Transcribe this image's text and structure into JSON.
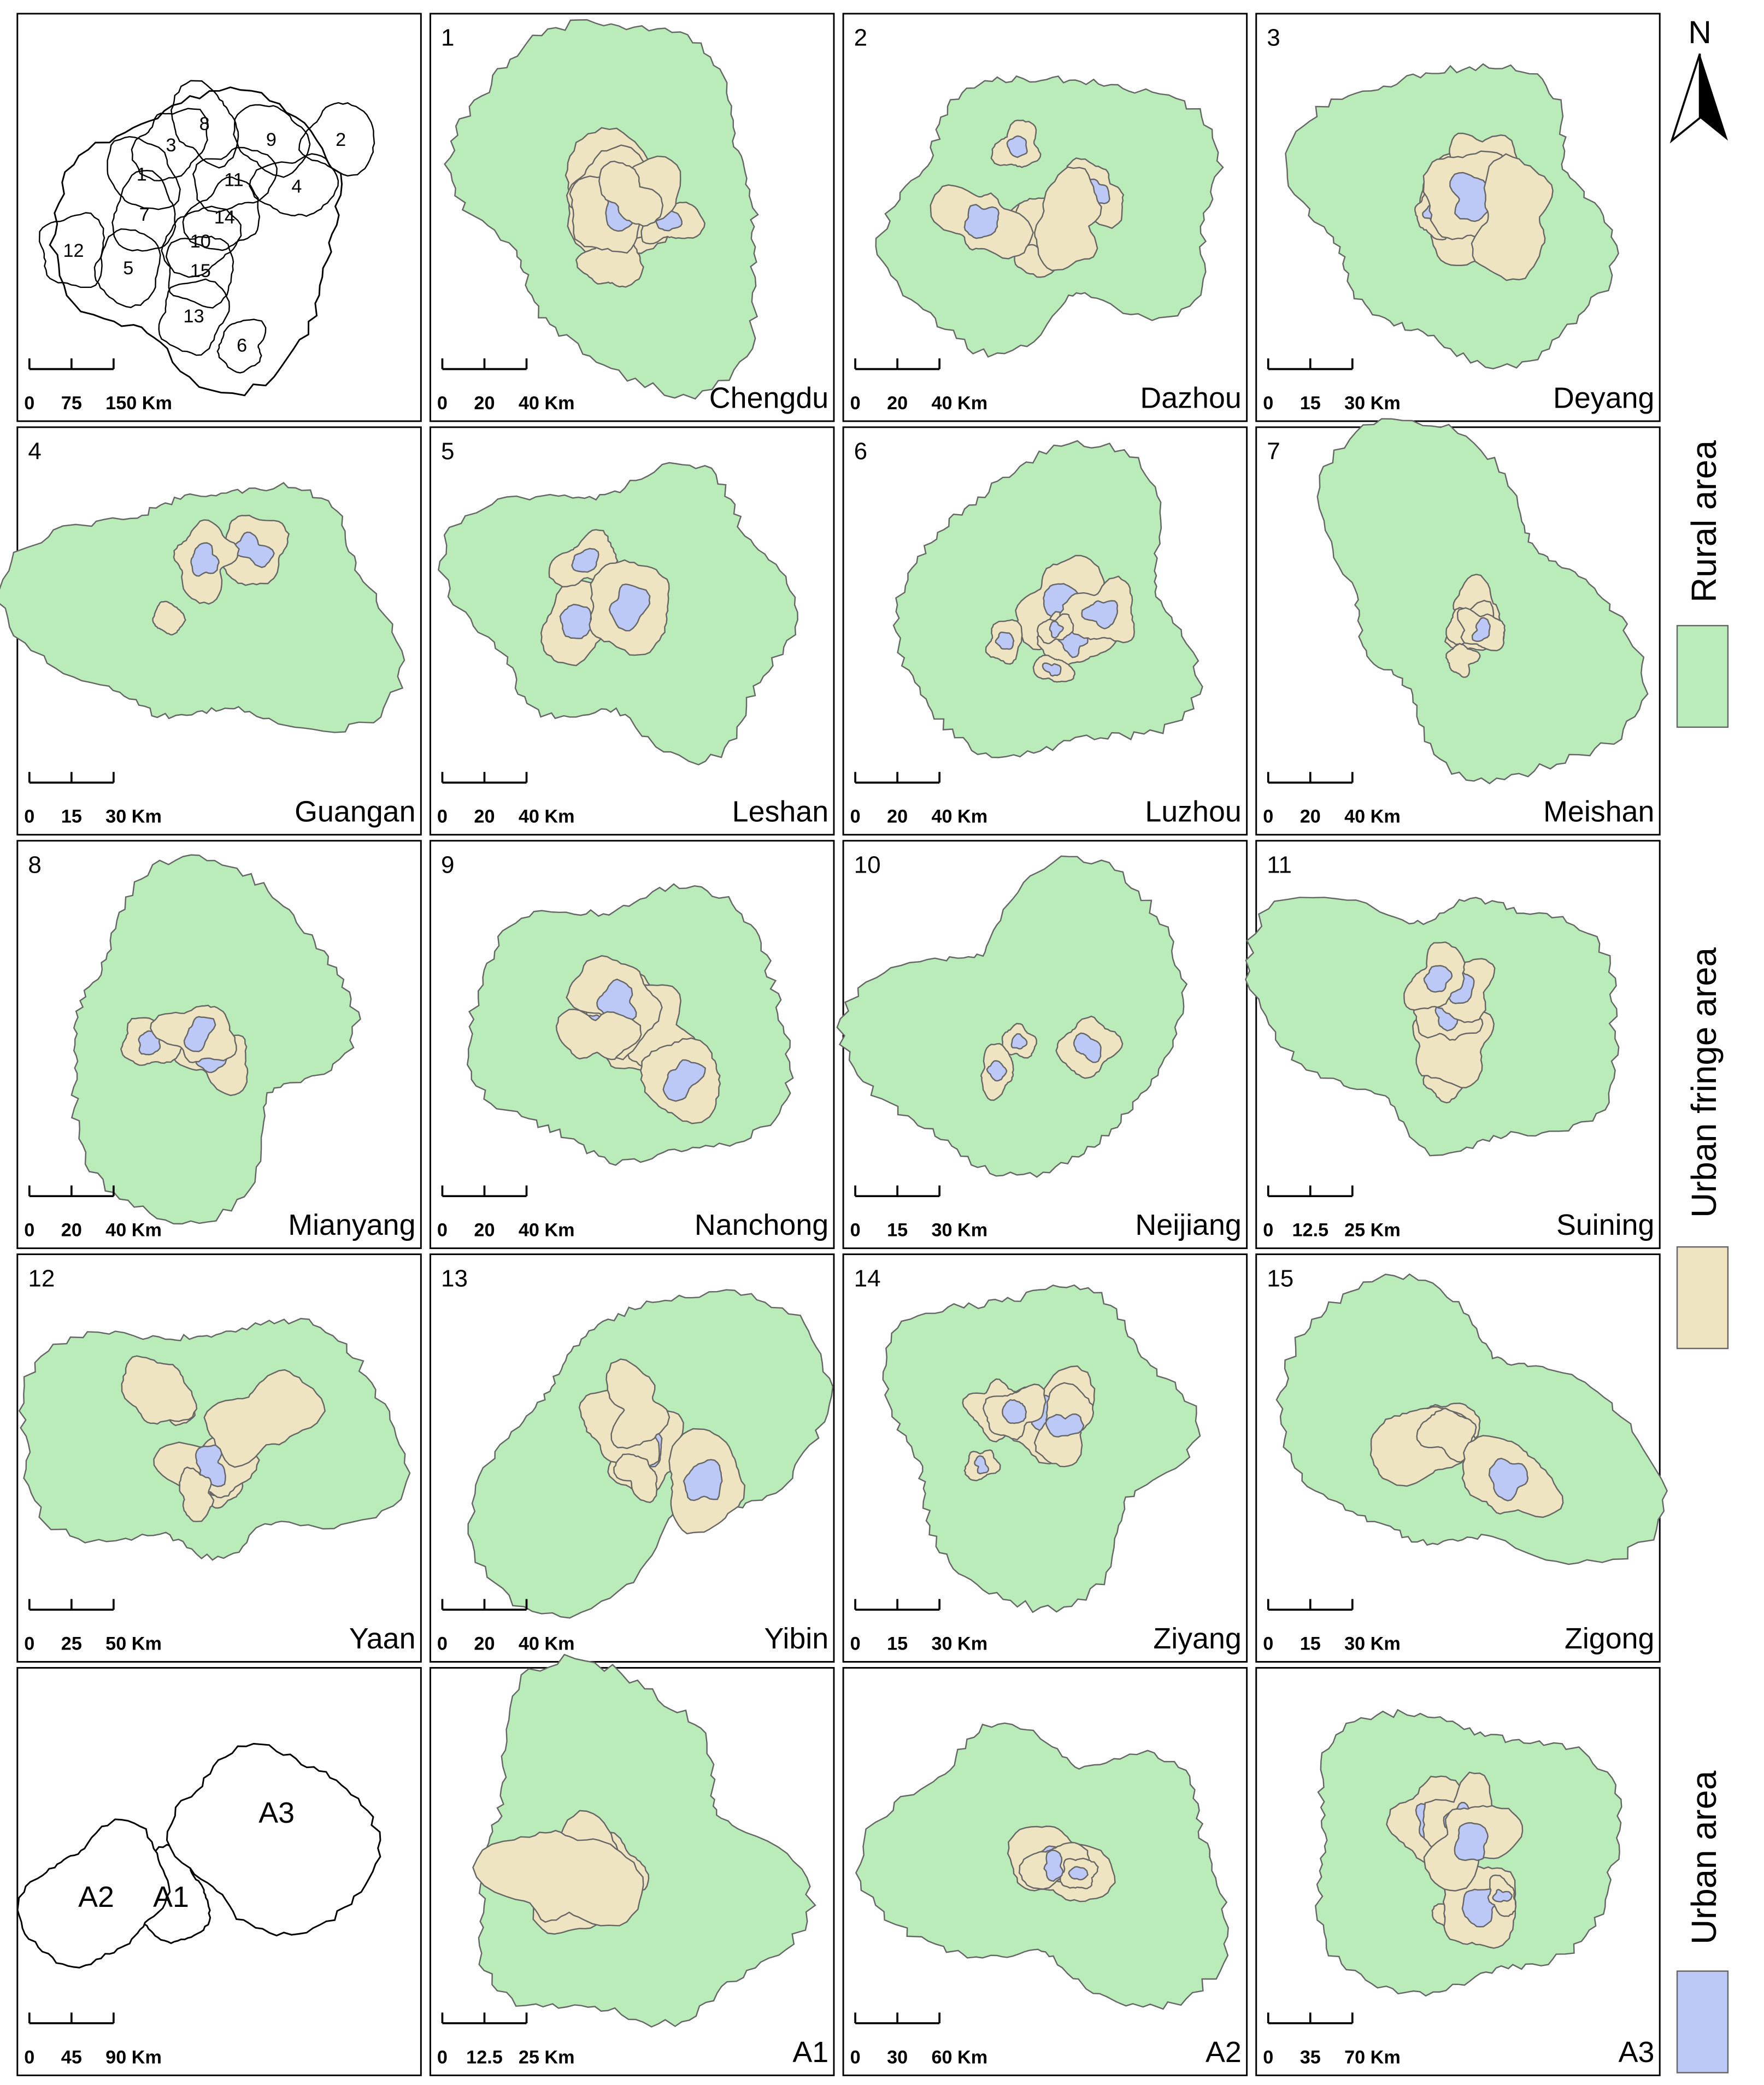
{
  "north_arrow": "N",
  "legend": [
    {
      "label": "Rural area",
      "color": "#b9ecb9"
    },
    {
      "label": "Urban fringe area",
      "color": "#efe4c1"
    },
    {
      "label": "Urban area",
      "color": "#bcc8f6"
    }
  ],
  "overview": {
    "labels": [
      "1",
      "2",
      "3",
      "4",
      "5",
      "6",
      "7",
      "8",
      "9",
      "10",
      "11",
      "12",
      "13",
      "14",
      "15"
    ],
    "scale": [
      "0",
      "75",
      "150 Km"
    ]
  },
  "panels": [
    {
      "number": "1",
      "name": "Chengdu",
      "scale": [
        "0",
        "20",
        "40 Km"
      ]
    },
    {
      "number": "2",
      "name": "Dazhou",
      "scale": [
        "0",
        "20",
        "40 Km"
      ]
    },
    {
      "number": "3",
      "name": "Deyang",
      "scale": [
        "0",
        "15",
        "30 Km"
      ]
    },
    {
      "number": "4",
      "name": "Guangan",
      "scale": [
        "0",
        "15",
        "30 Km"
      ]
    },
    {
      "number": "5",
      "name": "Leshan",
      "scale": [
        "0",
        "20",
        "40 Km"
      ]
    },
    {
      "number": "6",
      "name": "Luzhou",
      "scale": [
        "0",
        "20",
        "40 Km"
      ]
    },
    {
      "number": "7",
      "name": "Meishan",
      "scale": [
        "0",
        "20",
        "40 Km"
      ]
    },
    {
      "number": "8",
      "name": "Mianyang",
      "scale": [
        "0",
        "20",
        "40 Km"
      ]
    },
    {
      "number": "9",
      "name": "Nanchong",
      "scale": [
        "0",
        "20",
        "40 Km"
      ]
    },
    {
      "number": "10",
      "name": "Neijiang",
      "scale": [
        "0",
        "15",
        "30 Km"
      ]
    },
    {
      "number": "11",
      "name": "Suining",
      "scale": [
        "0",
        "12.5",
        "25 Km"
      ]
    },
    {
      "number": "12",
      "name": "Yaan",
      "scale": [
        "0",
        "25",
        "50 Km"
      ]
    },
    {
      "number": "13",
      "name": "Yibin",
      "scale": [
        "0",
        "20",
        "40 Km"
      ]
    },
    {
      "number": "14",
      "name": "Ziyang",
      "scale": [
        "0",
        "15",
        "30 Km"
      ]
    },
    {
      "number": "15",
      "name": "Zigong",
      "scale": [
        "0",
        "15",
        "30 Km"
      ]
    }
  ],
  "region_overview": {
    "labels": [
      "A1",
      "A2",
      "A3"
    ],
    "scale": [
      "0",
      "45",
      "90 Km"
    ]
  },
  "regions": [
    {
      "name": "A1",
      "scale": [
        "0",
        "12.5",
        "25 Km"
      ]
    },
    {
      "name": "A2",
      "scale": [
        "0",
        "30",
        "60 Km"
      ]
    },
    {
      "name": "A3",
      "scale": [
        "0",
        "35",
        "70 Km"
      ]
    }
  ]
}
